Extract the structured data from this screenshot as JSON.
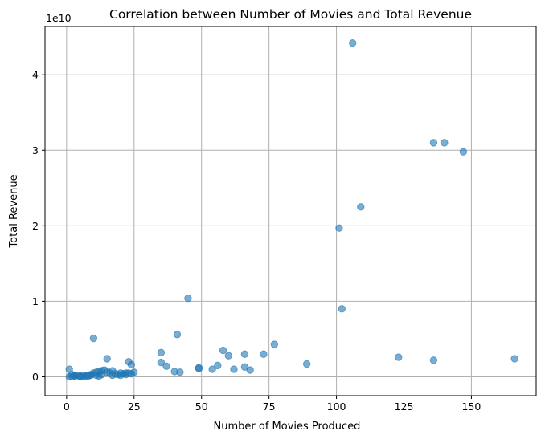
{
  "chart_data": {
    "type": "scatter",
    "title": "Correlation between Number of Movies and Total Revenue",
    "xlabel": "Number of Movies Produced",
    "ylabel": "Total Revenue",
    "y_offset_label": "1e10",
    "xlim": [
      -8,
      174
    ],
    "ylim": [
      -0.25,
      4.64
    ],
    "y_unit_multiplier": 10000000000,
    "grid": true,
    "legend": "none",
    "color": "#1f77b4",
    "xticks": [
      0,
      25,
      50,
      75,
      100,
      125,
      150
    ],
    "yticks": [
      0,
      1,
      2,
      3,
      4
    ],
    "x": [
      106,
      136,
      140,
      147,
      109,
      101,
      45,
      102,
      41,
      10,
      77,
      58,
      35,
      15,
      60,
      66,
      73,
      166,
      123,
      136,
      89,
      23,
      35,
      24,
      56,
      37,
      66,
      49,
      49,
      54,
      62,
      68,
      40,
      42,
      25,
      1,
      2,
      3,
      4,
      5,
      6,
      7,
      8,
      9,
      10,
      11,
      12,
      13,
      14,
      15,
      16,
      17,
      18,
      19,
      20,
      21,
      22,
      23,
      24,
      2,
      5,
      8,
      11,
      13,
      17,
      20,
      22,
      1,
      3,
      6,
      9,
      12
    ],
    "y": [
      4.42,
      3.1,
      3.1,
      2.98,
      2.25,
      1.97,
      1.04,
      0.9,
      0.56,
      0.51,
      0.43,
      0.35,
      0.32,
      0.24,
      0.28,
      0.3,
      0.3,
      0.24,
      0.26,
      0.22,
      0.17,
      0.2,
      0.19,
      0.16,
      0.15,
      0.14,
      0.13,
      0.12,
      0.11,
      0.1,
      0.1,
      0.09,
      0.07,
      0.06,
      0.06,
      0.1,
      0.03,
      0.02,
      0.02,
      0.01,
      0.02,
      0.01,
      0.02,
      0.03,
      0.05,
      0.06,
      0.07,
      0.08,
      0.09,
      0.06,
      0.05,
      0.08,
      0.04,
      0.03,
      0.05,
      0.04,
      0.05,
      0.05,
      0.04,
      0.0,
      0.0,
      0.01,
      0.02,
      0.03,
      0.02,
      0.02,
      0.03,
      0.0,
      0.01,
      0.0,
      0.02,
      0.01
    ]
  }
}
